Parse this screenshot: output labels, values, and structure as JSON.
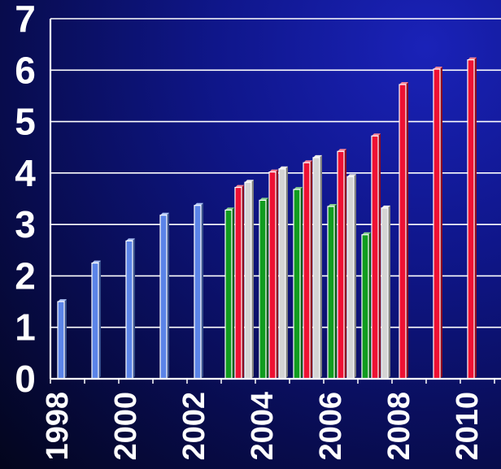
{
  "chart_data": {
    "type": "bar",
    "title": "",
    "xlabel": "",
    "ylabel": "",
    "ylim": [
      0,
      7
    ],
    "yticks": [
      "0",
      "1",
      "2",
      "3",
      "4",
      "5",
      "6",
      "7"
    ],
    "xticks": [
      "1998",
      "2000",
      "2002",
      "2004",
      "2006",
      "2008",
      "2010"
    ],
    "categories": [
      "1998",
      "1999",
      "2000",
      "2001",
      "2002",
      "2003",
      "2004",
      "2005",
      "2006",
      "2007",
      "2008",
      "2009",
      "2010"
    ],
    "grid": true,
    "legend": "none",
    "series": [
      {
        "color": "#5b84e8",
        "values": [
          1.5,
          2.25,
          2.68,
          3.18,
          3.37,
          null,
          null,
          null,
          null,
          null,
          null,
          null,
          null
        ]
      },
      {
        "color": "#119c1f",
        "values": [
          null,
          null,
          null,
          null,
          null,
          3.28,
          3.47,
          3.68,
          3.35,
          2.8,
          null,
          null,
          null
        ]
      },
      {
        "color": "#ee1133",
        "values": [
          null,
          null,
          null,
          null,
          null,
          3.72,
          4.02,
          4.2,
          4.42,
          4.72,
          5.72,
          6.02,
          6.2
        ]
      },
      {
        "color": "#d4d4d4",
        "values": [
          null,
          null,
          null,
          null,
          null,
          3.82,
          4.08,
          4.3,
          3.93,
          3.32,
          null,
          null,
          null
        ]
      }
    ]
  }
}
